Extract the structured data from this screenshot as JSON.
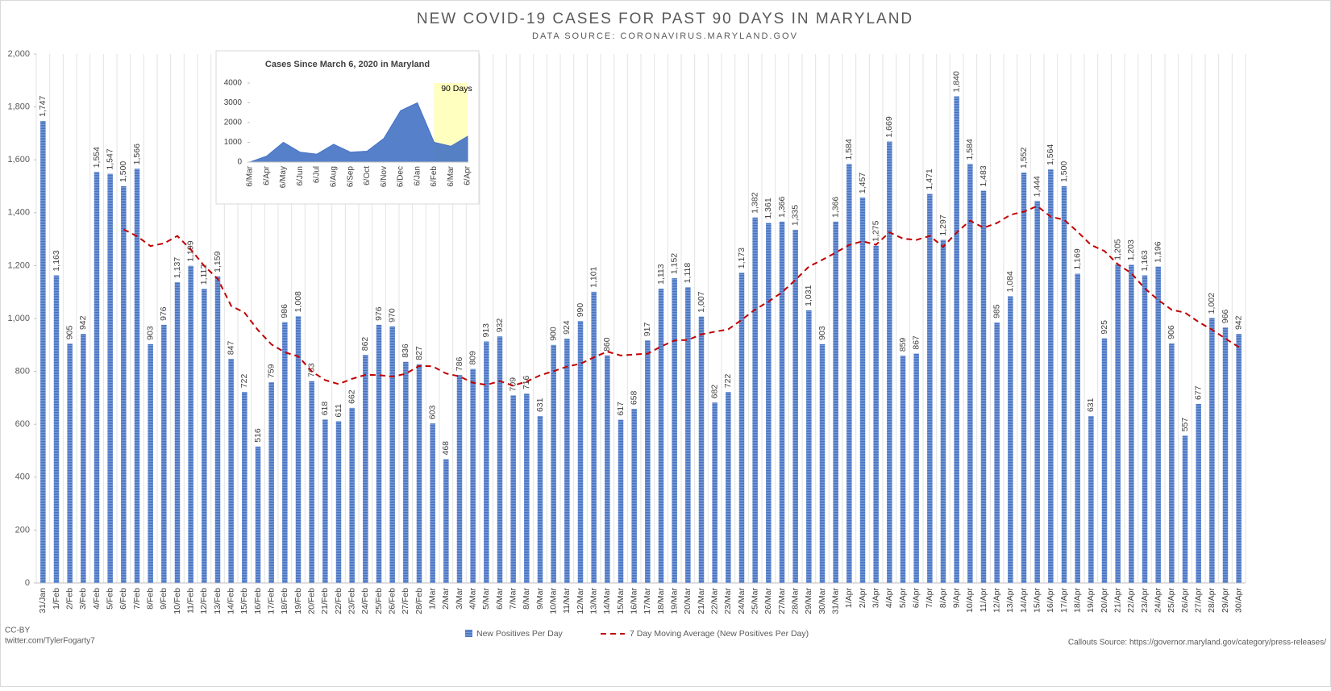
{
  "chart_data": [
    {
      "type": "bar",
      "title": "NEW COVID-19 CASES FOR PAST 90 DAYS IN MARYLAND",
      "subtitle": "DATA SOURCE: CORONAVIRUS.MARYLAND.GOV",
      "categories": [
        "31/Jan",
        "1/Feb",
        "2/Feb",
        "3/Feb",
        "4/Feb",
        "5/Feb",
        "6/Feb",
        "7/Feb",
        "8/Feb",
        "9/Feb",
        "10/Feb",
        "11/Feb",
        "12/Feb",
        "13/Feb",
        "14/Feb",
        "15/Feb",
        "16/Feb",
        "17/Feb",
        "18/Feb",
        "19/Feb",
        "20/Feb",
        "21/Feb",
        "22/Feb",
        "23/Feb",
        "24/Feb",
        "25/Feb",
        "26/Feb",
        "27/Feb",
        "28/Feb",
        "1/Mar",
        "2/Mar",
        "3/Mar",
        "4/Mar",
        "5/Mar",
        "6/Mar",
        "7/Mar",
        "8/Mar",
        "9/Mar",
        "10/Mar",
        "11/Mar",
        "12/Mar",
        "13/Mar",
        "14/Mar",
        "15/Mar",
        "16/Mar",
        "17/Mar",
        "18/Mar",
        "19/Mar",
        "20/Mar",
        "21/Mar",
        "22/Mar",
        "23/Mar",
        "24/Mar",
        "25/Mar",
        "26/Mar",
        "27/Mar",
        "28/Mar",
        "29/Mar",
        "30/Mar",
        "31/Mar",
        "1/Apr",
        "2/Apr",
        "3/Apr",
        "4/Apr",
        "5/Apr",
        "6/Apr",
        "7/Apr",
        "8/Apr",
        "9/Apr",
        "10/Apr",
        "11/Apr",
        "12/Apr",
        "13/Apr",
        "14/Apr",
        "15/Apr",
        "16/Apr",
        "17/Apr",
        "18/Apr",
        "19/Apr",
        "20/Apr",
        "21/Apr",
        "22/Apr",
        "23/Apr",
        "24/Apr",
        "25/Apr",
        "26/Apr",
        "27/Apr",
        "28/Apr",
        "29/Apr",
        "30/Apr"
      ],
      "series": [
        {
          "name": "New Positives Per Day",
          "color": "#4472c4",
          "values": [
            1747,
            1163,
            905,
            942,
            1554,
            1547,
            1500,
            1566,
            903,
            976,
            1137,
            1199,
            1112,
            1159,
            847,
            722,
            516,
            759,
            986,
            1008,
            763,
            618,
            611,
            662,
            862,
            976,
            970,
            836,
            827,
            603,
            468,
            786,
            809,
            913,
            932,
            709,
            716,
            631,
            900,
            924,
            990,
            1101,
            860,
            617,
            658,
            917,
            1113,
            1152,
            1118,
            1007,
            682,
            722,
            1173,
            1382,
            1361,
            1366,
            1335,
            1031,
            903,
            1366,
            1584,
            1457,
            1275,
            1669,
            859,
            867,
            1471,
            1297,
            1840,
            1584,
            1483,
            985,
            1084,
            1552,
            1444,
            1564,
            1500,
            1169,
            631,
            925,
            1205,
            1203,
            1163,
            1196,
            906,
            557,
            677,
            1002,
            966,
            942
          ],
          "value_labels": [
            "1,747",
            "1,163",
            "905",
            "942",
            "1,554",
            "1,547",
            "1,500",
            "1,566",
            "903",
            "976",
            "1,137",
            "1,199",
            "1,112",
            "1,159",
            "847",
            "722",
            "516",
            "759",
            "986",
            "1,008",
            "763",
            "618",
            "611",
            "662",
            "862",
            "976",
            "970",
            "836",
            "827",
            "603",
            "468",
            "786",
            "809",
            "913",
            "932",
            "709",
            "716",
            "631",
            "900",
            "924",
            "990",
            "1,101",
            "860",
            "617",
            "658",
            "917",
            "1,113",
            "1,152",
            "1,118",
            "1,007",
            "682",
            "722",
            "1,173",
            "1,382",
            "1,361",
            "1,366",
            "1,335",
            "1,031",
            "903",
            "1,366",
            "1,584",
            "1,457",
            "1,275",
            "1,669",
            "859",
            "867",
            "1,471",
            "1,297",
            "1,840",
            "1,584",
            "1,483",
            "985",
            "1,084",
            "1,552",
            "1,444",
            "1,564",
            "1,500",
            "1,169",
            "631",
            "925",
            "1,205",
            "1,203",
            "1,163",
            "1,196",
            "906",
            "557",
            "677",
            "1,002",
            "966",
            "942"
          ]
        },
        {
          "name": "7 Day Moving Average (New Positives Per Day)",
          "color": "#c00000",
          "type": "line",
          "values": [
            null,
            null,
            null,
            null,
            null,
            null,
            1337,
            1311,
            1274,
            1284,
            1312,
            1261,
            1199,
            1150,
            1048,
            1022,
            956,
            902,
            872,
            857,
            800,
            767,
            752,
            772,
            787,
            786,
            780,
            791,
            821,
            819,
            792,
            781,
            757,
            749,
            763,
            746,
            762,
            785,
            801,
            818,
            829,
            853,
            875,
            860,
            864,
            867,
            894,
            917,
            919,
            940,
            950,
            959,
            995,
            1034,
            1064,
            1099,
            1146,
            1196,
            1222,
            1249,
            1278,
            1292,
            1279,
            1326,
            1302,
            1297,
            1312,
            1271,
            1325,
            1370,
            1343,
            1361,
            1392,
            1404,
            1425,
            1385,
            1373,
            1328,
            1278,
            1255,
            1205,
            1171,
            1114,
            1070,
            1033,
            1022,
            987,
            958,
            924,
            892
          ]
        }
      ],
      "ylim": [
        0,
        2000
      ],
      "yticks": [
        0,
        200,
        400,
        600,
        800,
        {
          "value": 1000,
          "label": "1,000"
        },
        {
          "value": 1200,
          "label": "1,200"
        },
        {
          "value": 1400,
          "label": "1,400"
        },
        {
          "value": 1600,
          "label": "1,600"
        },
        {
          "value": 1800,
          "label": "1,800"
        },
        {
          "value": 2000,
          "label": "2,000"
        }
      ],
      "grid": true,
      "legend": "bottom",
      "credit": "CC-BY",
      "credit_link": "twitter.com/TylerFogarty7",
      "source": "Callouts Source: https://governor.maryland.gov/category/press-releases/"
    },
    {
      "type": "area",
      "title": "Cases Since March 6, 2020 in Maryland",
      "categories": [
        "6/Mar",
        "6/Apr",
        "6/May",
        "6/Jun",
        "6/Jul",
        "6/Aug",
        "6/Sep",
        "6/Oct",
        "6/Nov",
        "6/Dec",
        "6/Jan",
        "6/Feb",
        "6/Mar",
        "6/Apr"
      ],
      "series": [
        {
          "name": "New Positives Per Day",
          "color": "#4472c4",
          "values": [
            0,
            300,
            1000,
            500,
            400,
            900,
            500,
            550,
            1200,
            2600,
            3000,
            1000,
            800,
            1300
          ]
        }
      ],
      "ylim": [
        0,
        4000
      ],
      "yticks": [
        0,
        1000,
        2000,
        3000,
        4000
      ],
      "highlight": {
        "label": "90 Days",
        "from": "6/Feb",
        "color": "#ffffc0"
      }
    }
  ]
}
